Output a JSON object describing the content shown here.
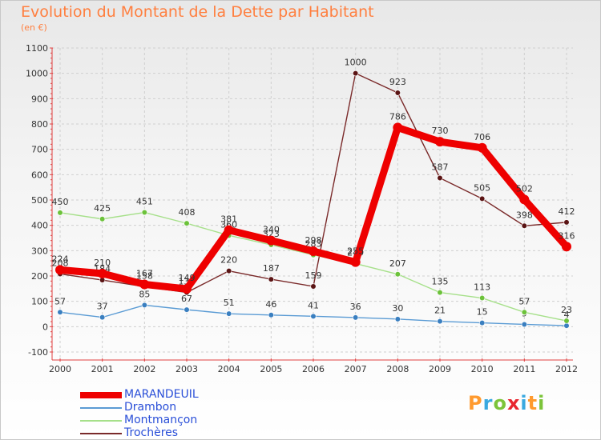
{
  "title": "Evolution du Montant de la Dette par Habitant",
  "subtitle": "(en €)",
  "logo": {
    "text": "Proxiti",
    "colors": [
      "#ff9a2e",
      "#3aa9e0",
      "#7cc43a",
      "#e8262f",
      "#3aa9e0",
      "#ff9a2e",
      "#7cc43a"
    ]
  },
  "chart_data": {
    "type": "line",
    "title": "Evolution du Montant de la Dette par Habitant",
    "ylabel": "(en €)",
    "xlabel": "",
    "ylim": [
      -100,
      1100
    ],
    "yticks": [
      -100,
      0,
      100,
      200,
      300,
      400,
      500,
      600,
      700,
      800,
      900,
      1000,
      1100
    ],
    "categories": [
      "2000",
      "2001",
      "2002",
      "2003",
      "2004",
      "2005",
      "2006",
      "2007",
      "2008",
      "2009",
      "2010",
      "2011",
      "2012"
    ],
    "grid": true,
    "legend_position": "bottom-left",
    "series": [
      {
        "name": "Trochères",
        "color": "#7a2a2a",
        "marker_color": "#5a1414",
        "emphasis": false,
        "values": [
          208,
          184,
          158,
          135,
          220,
          187,
          159,
          1000,
          923,
          587,
          505,
          398,
          412
        ]
      },
      {
        "name": "Drambon",
        "color": "#5a9bd4",
        "marker_color": "#3a7fc0",
        "emphasis": false,
        "values": [
          57,
          37,
          85,
          67,
          51,
          46,
          41,
          36,
          30,
          21,
          15,
          9,
          4
        ]
      },
      {
        "name": "Montmançon",
        "color": "#a6e08a",
        "marker_color": "#6cc23a",
        "emphasis": false,
        "values": [
          450,
          425,
          451,
          408,
          360,
          323,
          283,
          249,
          207,
          135,
          113,
          57,
          23
        ]
      },
      {
        "name": "MARANDEUIL",
        "color": "#ee0000",
        "marker_color": "#ee0000",
        "emphasis": true,
        "values": [
          224,
          210,
          167,
          149,
          381,
          340,
          298,
          255,
          786,
          730,
          706,
          502,
          316
        ]
      }
    ]
  },
  "legend": {
    "items": [
      {
        "label": "MARANDEUIL",
        "color": "#ee0000",
        "thick": true
      },
      {
        "label": "Drambon",
        "color": "#5a9bd4",
        "thick": false
      },
      {
        "label": "Montmançon",
        "color": "#a6e08a",
        "thick": false
      },
      {
        "label": "Trochères",
        "color": "#7a2a2a",
        "thick": false
      }
    ]
  }
}
